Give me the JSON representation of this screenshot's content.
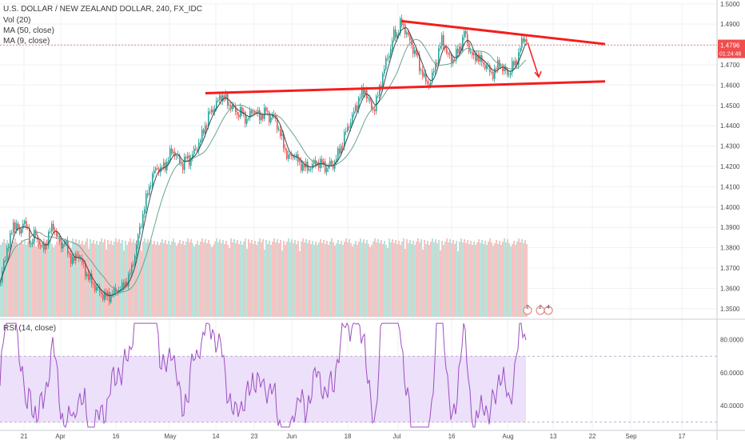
{
  "chart_data": {
    "type": "candlestick",
    "title": "U.S. DOLLAR / NEW ZEALAND DOLLAR, 240, FX_IDC",
    "legend": [
      "Vol (20)",
      "MA (50, close)",
      "MA (9, close)"
    ],
    "price_axis": {
      "ticks": [
        "1.5000",
        "1.4900",
        "1.4800",
        "1.4700",
        "1.4600",
        "1.4500",
        "1.4400",
        "1.4300",
        "1.4200",
        "1.4100",
        "1.4000",
        "1.3900",
        "1.3800",
        "1.3700",
        "1.3600",
        "1.3500"
      ],
      "ylim": [
        1.345,
        1.5
      ]
    },
    "current_price": "1.4796",
    "countdown": "01:24:48",
    "time_axis": [
      "21",
      "Apr",
      "16",
      "May",
      "14",
      "23",
      "Jun",
      "18",
      "Jul",
      "16",
      "Aug",
      "13",
      "22",
      "Sep",
      "17"
    ],
    "price_path": [
      [
        0,
        1.363
      ],
      [
        4,
        1.372
      ],
      [
        8,
        1.38
      ],
      [
        12,
        1.384
      ],
      [
        16,
        1.392
      ],
      [
        20,
        1.391
      ],
      [
        24,
        1.386
      ],
      [
        28,
        1.394
      ],
      [
        32,
        1.39
      ],
      [
        38,
        1.382
      ],
      [
        43,
        1.387
      ],
      [
        48,
        1.383
      ],
      [
        53,
        1.378
      ],
      [
        58,
        1.384
      ],
      [
        62,
        1.388
      ],
      [
        66,
        1.391
      ],
      [
        70,
        1.386
      ],
      [
        75,
        1.381
      ],
      [
        80,
        1.383
      ],
      [
        84,
        1.378
      ],
      [
        88,
        1.375
      ],
      [
        92,
        1.373
      ],
      [
        96,
        1.378
      ],
      [
        100,
        1.374
      ],
      [
        104,
        1.37
      ],
      [
        108,
        1.367
      ],
      [
        112,
        1.364
      ],
      [
        116,
        1.362
      ],
      [
        120,
        1.36
      ],
      [
        124,
        1.358
      ],
      [
        128,
        1.357
      ],
      [
        132,
        1.356
      ],
      [
        136,
        1.356
      ],
      [
        140,
        1.358
      ],
      [
        144,
        1.358
      ],
      [
        148,
        1.36
      ],
      [
        152,
        1.36
      ],
      [
        156,
        1.363
      ],
      [
        160,
        1.365
      ],
      [
        164,
        1.37
      ],
      [
        168,
        1.377
      ],
      [
        172,
        1.385
      ],
      [
        176,
        1.393
      ],
      [
        180,
        1.4
      ],
      [
        184,
        1.407
      ],
      [
        188,
        1.413
      ],
      [
        192,
        1.417
      ],
      [
        196,
        1.42
      ],
      [
        200,
        1.418
      ],
      [
        204,
        1.42
      ],
      [
        208,
        1.422
      ],
      [
        212,
        1.426
      ],
      [
        216,
        1.428
      ],
      [
        220,
        1.425
      ],
      [
        224,
        1.422
      ],
      [
        228,
        1.421
      ],
      [
        232,
        1.424
      ],
      [
        236,
        1.423
      ],
      [
        240,
        1.426
      ],
      [
        244,
        1.428
      ],
      [
        248,
        1.432
      ],
      [
        252,
        1.435
      ],
      [
        256,
        1.44
      ],
      [
        260,
        1.445
      ],
      [
        264,
        1.447
      ],
      [
        268,
        1.45
      ],
      [
        272,
        1.452
      ],
      [
        276,
        1.455
      ],
      [
        280,
        1.454
      ],
      [
        284,
        1.451
      ],
      [
        288,
        1.45
      ],
      [
        292,
        1.448
      ],
      [
        296,
        1.446
      ],
      [
        300,
        1.447
      ],
      [
        304,
        1.445
      ],
      [
        308,
        1.443
      ],
      [
        312,
        1.445
      ],
      [
        316,
        1.448
      ],
      [
        320,
        1.446
      ],
      [
        324,
        1.444
      ],
      [
        328,
        1.446
      ],
      [
        332,
        1.447
      ],
      [
        336,
        1.444
      ],
      [
        340,
        1.445
      ],
      [
        344,
        1.443
      ],
      [
        348,
        1.438
      ],
      [
        352,
        1.433
      ],
      [
        356,
        1.428
      ],
      [
        360,
        1.424
      ],
      [
        364,
        1.425
      ],
      [
        368,
        1.426
      ],
      [
        372,
        1.422
      ],
      [
        376,
        1.421
      ],
      [
        380,
        1.42
      ],
      [
        384,
        1.419
      ],
      [
        388,
        1.42
      ],
      [
        392,
        1.421
      ],
      [
        396,
        1.422
      ],
      [
        400,
        1.421
      ],
      [
        404,
        1.421
      ],
      [
        408,
        1.419
      ],
      [
        412,
        1.421
      ],
      [
        416,
        1.421
      ],
      [
        420,
        1.424
      ],
      [
        424,
        1.428
      ],
      [
        428,
        1.432
      ],
      [
        432,
        1.437
      ],
      [
        436,
        1.441
      ],
      [
        440,
        1.444
      ],
      [
        444,
        1.449
      ],
      [
        448,
        1.453
      ],
      [
        452,
        1.456
      ],
      [
        456,
        1.458
      ],
      [
        460,
        1.452
      ],
      [
        464,
        1.449
      ],
      [
        468,
        1.449
      ],
      [
        472,
        1.455
      ],
      [
        476,
        1.462
      ],
      [
        480,
        1.468
      ],
      [
        484,
        1.474
      ],
      [
        488,
        1.478
      ],
      [
        492,
        1.485
      ],
      [
        496,
        1.485
      ],
      [
        500,
        1.49
      ],
      [
        504,
        1.489
      ],
      [
        508,
        1.486
      ],
      [
        512,
        1.481
      ],
      [
        516,
        1.478
      ],
      [
        520,
        1.475
      ],
      [
        524,
        1.469
      ],
      [
        528,
        1.466
      ],
      [
        532,
        1.461
      ],
      [
        536,
        1.461
      ],
      [
        540,
        1.464
      ],
      [
        544,
        1.47
      ],
      [
        548,
        1.477
      ],
      [
        552,
        1.482
      ],
      [
        556,
        1.479
      ],
      [
        560,
        1.474
      ],
      [
        564,
        1.472
      ],
      [
        568,
        1.474
      ],
      [
        572,
        1.476
      ],
      [
        576,
        1.48
      ],
      [
        580,
        1.486
      ],
      [
        584,
        1.481
      ],
      [
        588,
        1.476
      ],
      [
        592,
        1.473
      ],
      [
        596,
        1.475
      ],
      [
        600,
        1.472
      ],
      [
        604,
        1.47
      ],
      [
        608,
        1.47
      ],
      [
        612,
        1.466
      ],
      [
        616,
        1.466
      ],
      [
        620,
        1.468
      ],
      [
        624,
        1.471
      ],
      [
        628,
        1.468
      ],
      [
        632,
        1.466
      ],
      [
        636,
        1.466
      ],
      [
        640,
        1.469
      ],
      [
        644,
        1.471
      ],
      [
        648,
        1.475
      ],
      [
        652,
        1.481
      ],
      [
        656,
        1.484
      ],
      [
        659,
        1.48
      ]
    ],
    "trend_lines": [
      {
        "name": "upper",
        "from": [
          502,
          1.4915
        ],
        "to": [
          757,
          1.4802
        ]
      },
      {
        "name": "lower",
        "from": [
          257,
          1.456
        ],
        "to": [
          757,
          1.4618
        ]
      },
      {
        "name": "forecast",
        "from": [
          660,
          1.481
        ],
        "to": [
          674,
          1.464
        ]
      }
    ],
    "rsi": {
      "label": "RSI (14, close)",
      "ticks": [
        "80.0000",
        "60.0000",
        "40.0000"
      ],
      "ylim": [
        25,
        92
      ],
      "bands": [
        30,
        70
      ]
    }
  },
  "colors": {
    "up": "#26a69a",
    "down": "#ef5350",
    "trend": "#f51d1d",
    "ma_fast": "#3b4a55",
    "ma_slow": "#6aa58f",
    "rsi_line": "#9c4fbf",
    "rsi_fill": "#ece0fb",
    "price_tag": "#f24d4d",
    "vol_up": "#b7e3da",
    "vol_down": "#f7c3c3"
  }
}
